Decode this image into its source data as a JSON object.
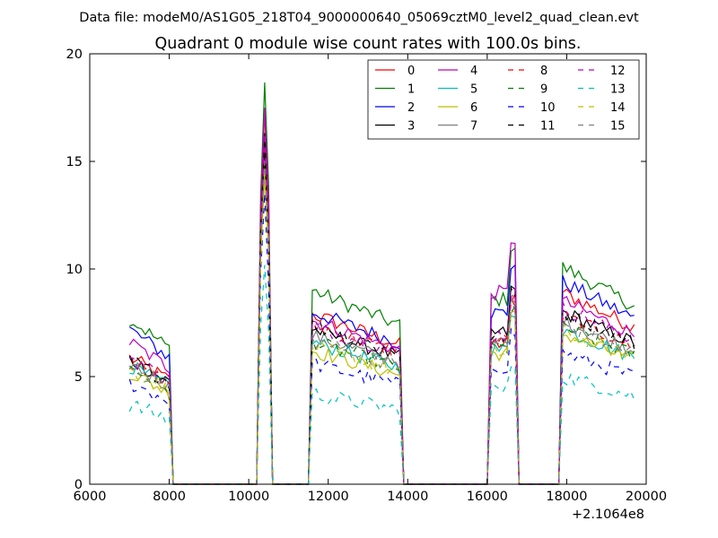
{
  "figure": {
    "suptitle": "Data file: modeM0/AS1G05_218T04_9000000640_05069cztM0_level2_quad_clean.evt"
  },
  "chart_data": {
    "type": "line",
    "title": "Quadrant 0 module wise count rates with 100.0s bins.",
    "xlabel": "",
    "ylabel": "",
    "xlim": [
      6000,
      20000
    ],
    "ylim": [
      0,
      20
    ],
    "x_offset_label": "+2.1064e8",
    "xticks": [
      6000,
      8000,
      10000,
      12000,
      14000,
      16000,
      18000,
      20000
    ],
    "xtick_labels": [
      "6000",
      "8000",
      "10000",
      "12000",
      "14000",
      "16000",
      "18000",
      "20000"
    ],
    "yticks": [
      0,
      5,
      10,
      15,
      20
    ],
    "ytick_labels": [
      "0",
      "5",
      "10",
      "15",
      "20"
    ],
    "grid": false,
    "legend": "top-right",
    "legend_columns": 4,
    "series": [
      {
        "name": "0",
        "color": "#ff0000",
        "dash": "solid",
        "level": [
          5.9,
          17.0,
          7.9,
          8.4,
          8.9
        ]
      },
      {
        "name": "1",
        "color": "#008000",
        "dash": "solid",
        "level": [
          7.7,
          18.6,
          9.0,
          11.0,
          10.1
        ]
      },
      {
        "name": "2",
        "color": "#0000ff",
        "dash": "solid",
        "level": [
          7.2,
          16.0,
          8.0,
          10.2,
          9.4
        ]
      },
      {
        "name": "3",
        "color": "#000000",
        "dash": "solid",
        "level": [
          5.8,
          16.5,
          7.2,
          9.0,
          8.0
        ]
      },
      {
        "name": "4",
        "color": "#bf00bf",
        "dash": "solid",
        "level": [
          6.6,
          17.8,
          7.6,
          11.4,
          8.5
        ]
      },
      {
        "name": "5",
        "color": "#00bfbf",
        "dash": "solid",
        "level": [
          5.5,
          15.0,
          6.6,
          8.0,
          7.2
        ]
      },
      {
        "name": "6",
        "color": "#bfbf00",
        "dash": "solid",
        "level": [
          5.2,
          14.5,
          6.2,
          7.8,
          7.0
        ]
      },
      {
        "name": "7",
        "color": "#808080",
        "dash": "solid",
        "level": [
          5.6,
          15.5,
          6.9,
          8.4,
          7.6
        ]
      },
      {
        "name": "8",
        "color": "#ff0000",
        "dash": "dashed",
        "level": [
          5.7,
          15.8,
          7.4,
          8.6,
          7.8
        ]
      },
      {
        "name": "9",
        "color": "#008000",
        "dash": "dashed",
        "level": [
          5.4,
          14.8,
          6.6,
          8.1,
          7.3
        ]
      },
      {
        "name": "10",
        "color": "#0000ff",
        "dash": "dashed",
        "level": [
          4.7,
          13.0,
          5.6,
          7.0,
          6.1
        ]
      },
      {
        "name": "11",
        "color": "#000000",
        "dash": "dashed",
        "level": [
          5.8,
          15.8,
          7.4,
          8.8,
          8.0
        ]
      },
      {
        "name": "12",
        "color": "#bf00bf",
        "dash": "dashed",
        "level": [
          5.9,
          16.2,
          7.4,
          8.9,
          8.2
        ]
      },
      {
        "name": "13",
        "color": "#00bfbf",
        "dash": "dashed",
        "level": [
          3.7,
          10.0,
          4.2,
          5.6,
          5.0
        ]
      },
      {
        "name": "14",
        "color": "#bfbf00",
        "dash": "dashed",
        "level": [
          5.3,
          14.2,
          6.4,
          7.8,
          7.1
        ]
      },
      {
        "name": "15",
        "color": "#808080",
        "dash": "dashed",
        "level": [
          5.5,
          15.0,
          6.7,
          8.2,
          7.4
        ]
      }
    ],
    "segments": [
      {
        "start": 7000,
        "end": 8000
      },
      {
        "start": 10300,
        "end": 10500
      },
      {
        "start": 11600,
        "end": 13800
      },
      {
        "start": 16100,
        "end": 16700
      },
      {
        "start": 17900,
        "end": 19700
      }
    ],
    "x_range": [
      7000,
      19700
    ],
    "bin": 100
  }
}
